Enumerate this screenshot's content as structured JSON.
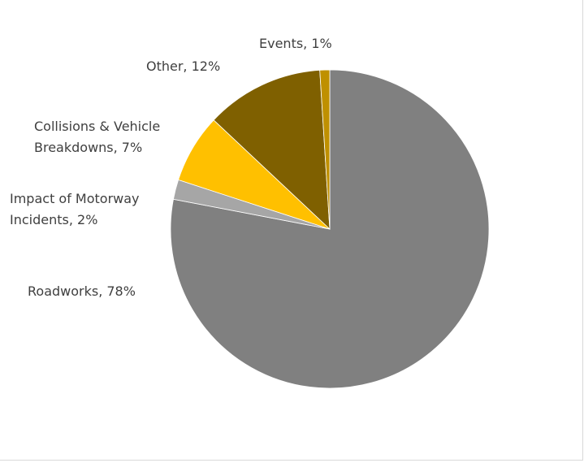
{
  "chart_data": {
    "type": "pie",
    "title": "",
    "slices": [
      {
        "name": "Roadworks",
        "value": 78,
        "label": "Roadworks, 78%",
        "color": "#808080"
      },
      {
        "name": "Impact of Motorway Incidents",
        "value": 2,
        "label": [
          "Impact of Motorway",
          "Incidents, 2%"
        ],
        "color": "#a6a6a6"
      },
      {
        "name": "Collisions & Vehicle Breakdowns",
        "value": 7,
        "label": [
          "Collisions & Vehicle",
          "Breakdowns, 7%"
        ],
        "color": "#ffc000"
      },
      {
        "name": "Other",
        "value": 12,
        "label": "Other, 12%",
        "color": "#7f6000"
      },
      {
        "name": "Events",
        "value": 1,
        "label": "Events, 1%",
        "color": "#bf9000"
      }
    ],
    "start_angle": "12 o'clock",
    "direction": "clockwise",
    "legend": "none"
  }
}
